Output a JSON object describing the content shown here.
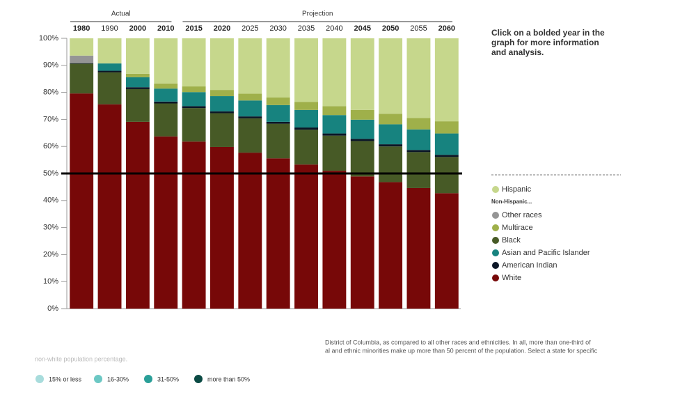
{
  "chart_data": {
    "type": "stacked_bar",
    "categories": [
      "1980",
      "1990",
      "2000",
      "2010",
      "2015",
      "2020",
      "2025",
      "2030",
      "2035",
      "2040",
      "2045",
      "2050",
      "2055",
      "2060"
    ],
    "bold": [
      true,
      false,
      true,
      true,
      true,
      true,
      false,
      false,
      false,
      false,
      true,
      true,
      false,
      true
    ],
    "groups": [
      "Actual",
      "Projection"
    ],
    "series": [
      {
        "name": "White",
        "color": "#770808",
        "values": [
          79.6,
          75.6,
          69.1,
          63.7,
          61.8,
          59.8,
          57.7,
          55.6,
          53.3,
          51.0,
          48.9,
          46.8,
          44.6,
          42.7
        ]
      },
      {
        "name": "Black",
        "color": "#475a26",
        "values": [
          11.0,
          11.8,
          12.1,
          12.2,
          12.4,
          12.5,
          12.7,
          12.8,
          12.9,
          13.0,
          13.1,
          13.2,
          13.3,
          13.4
        ]
      },
      {
        "name": "American Indian",
        "color": "#0b1626",
        "values": [
          0.2,
          0.6,
          0.7,
          0.7,
          0.7,
          0.7,
          0.7,
          0.7,
          0.8,
          0.8,
          0.8,
          0.8,
          0.8,
          0.8
        ]
      },
      {
        "name": "Asian and Pacific Islander",
        "color": "#17837f",
        "values": [
          0,
          2.7,
          3.7,
          4.8,
          5.2,
          5.6,
          5.9,
          6.2,
          6.5,
          6.8,
          7.1,
          7.4,
          7.6,
          7.9
        ]
      },
      {
        "name": "Multirace",
        "color": "#9fb04a",
        "values": [
          0,
          0,
          1.3,
          1.9,
          2.1,
          2.3,
          2.5,
          2.8,
          3.0,
          3.3,
          3.6,
          3.9,
          4.2,
          4.5
        ]
      },
      {
        "name": "Other races",
        "color": "#959595",
        "values": [
          2.8,
          0,
          0,
          0,
          0,
          0,
          0,
          0,
          0,
          0,
          0,
          0,
          0,
          0
        ]
      },
      {
        "name": "Hispanic",
        "color": "#c6d78c",
        "values": [
          6.4,
          9.3,
          13.1,
          16.7,
          17.8,
          19.1,
          20.5,
          21.9,
          23.5,
          25.1,
          26.5,
          27.9,
          29.5,
          30.7
        ]
      }
    ],
    "legend_subheading": "Non-Hispanic...",
    "ylim": [
      0,
      100
    ],
    "yticks": [
      {
        "value": 0,
        "label": "0%"
      },
      {
        "value": 10,
        "label": "10%"
      },
      {
        "value": 20,
        "label": "20%"
      },
      {
        "value": 30,
        "label": "30%"
      },
      {
        "value": 40,
        "label": "40%"
      },
      {
        "value": 50,
        "label": "50%"
      },
      {
        "value": 60,
        "label": "60%"
      },
      {
        "value": 70,
        "label": "70%"
      },
      {
        "value": 80,
        "label": "80%"
      },
      {
        "value": 90,
        "label": "90%"
      },
      {
        "value": 100,
        "label": "100%"
      }
    ],
    "reference_line": 50,
    "side_note": "Click on a bolded year in the graph for more information and analysis."
  },
  "footer": {
    "lines": [
      "District of Columbia, as compared to all other races and ethnicities. In all, more than one-third of",
      "al and ethnic minorities make up more than 50 percent of the population. Select a state for specific",
      "non-white population percentage."
    ],
    "map_legend": [
      {
        "label": "15% or less",
        "color": "#a8dcdc"
      },
      {
        "label": "16-30%",
        "color": "#6cc8c4"
      },
      {
        "label": "31-50%",
        "color": "#2a9f98"
      },
      {
        "label": "more than 50%",
        "color": "#0b4a44"
      }
    ]
  }
}
